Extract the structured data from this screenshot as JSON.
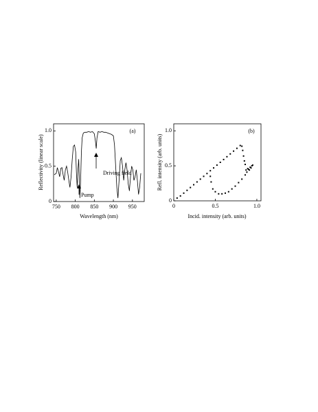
{
  "chart_data": [
    {
      "type": "line",
      "x_label": "Wavelength (nm)",
      "y_label": "Reflectivity (linear scale)",
      "annotations": [
        "(a)",
        "Driving field",
        "Pump"
      ],
      "color": "#000000",
      "x": [
        745,
        750,
        753,
        756,
        759,
        762,
        765,
        768,
        771,
        774,
        777,
        780,
        783,
        786,
        789,
        792,
        795,
        798,
        801,
        803,
        805,
        807,
        809,
        811,
        812,
        814,
        816,
        818,
        821,
        825,
        830,
        835,
        840,
        845,
        850,
        853,
        855,
        857,
        860,
        865,
        870,
        875,
        880,
        885,
        890,
        895,
        900,
        903,
        906,
        909,
        912,
        915,
        918,
        921,
        924,
        927,
        930,
        933,
        936,
        939,
        942,
        945,
        948,
        951,
        954,
        957,
        960,
        963,
        966,
        969,
        972
      ],
      "values": [
        0.38,
        0.4,
        0.48,
        0.42,
        0.35,
        0.47,
        0.48,
        0.38,
        0.3,
        0.45,
        0.5,
        0.42,
        0.3,
        0.2,
        0.35,
        0.6,
        0.78,
        0.8,
        0.7,
        0.4,
        0.2,
        0.45,
        0.6,
        0.25,
        0.05,
        0.3,
        0.7,
        0.9,
        0.97,
        0.98,
        0.98,
        0.99,
        0.98,
        0.99,
        0.96,
        0.85,
        0.75,
        0.9,
        0.99,
        0.98,
        0.99,
        0.98,
        0.98,
        0.97,
        0.96,
        0.95,
        0.93,
        0.8,
        0.5,
        0.2,
        0.05,
        0.3,
        0.58,
        0.62,
        0.5,
        0.3,
        0.45,
        0.55,
        0.45,
        0.25,
        0.15,
        0.35,
        0.5,
        0.45,
        0.3,
        0.35,
        0.45,
        0.3,
        0.1,
        0.2,
        0.4
      ],
      "xlim": [
        743,
        981
      ],
      "xticks": [
        750,
        800,
        850,
        900,
        950
      ],
      "ylim": [
        0,
        1.1
      ],
      "yticks": [
        0,
        0.5,
        {
          "value": 1,
          "label": "1.0"
        }
      ]
    },
    {
      "type": "scatter",
      "x_label": "Incid. intensity (arb. units)",
      "y_label": "Refl. intensity (arb. units)",
      "annotations": [
        "(b)"
      ],
      "color": "#000000",
      "x": [
        0.04,
        0.08,
        0.12,
        0.16,
        0.2,
        0.24,
        0.28,
        0.32,
        0.36,
        0.4,
        0.44,
        0.48,
        0.52,
        0.56,
        0.6,
        0.64,
        0.68,
        0.72,
        0.76,
        0.8,
        0.82,
        0.83,
        0.84,
        0.85,
        0.86,
        0.44,
        0.45,
        0.47,
        0.5,
        0.54,
        0.58,
        0.62,
        0.66,
        0.7,
        0.74,
        0.78,
        0.82,
        0.86,
        0.88,
        0.9,
        0.92,
        0.94,
        0.95,
        0.93,
        0.91,
        0.89,
        0.87
      ],
      "values": [
        0.04,
        0.07,
        0.11,
        0.15,
        0.19,
        0.23,
        0.27,
        0.31,
        0.35,
        0.39,
        0.43,
        0.47,
        0.51,
        0.55,
        0.59,
        0.63,
        0.67,
        0.71,
        0.75,
        0.79,
        0.78,
        0.72,
        0.64,
        0.57,
        0.52,
        0.35,
        0.27,
        0.17,
        0.13,
        0.1,
        0.1,
        0.11,
        0.13,
        0.17,
        0.21,
        0.26,
        0.31,
        0.37,
        0.41,
        0.45,
        0.48,
        0.5,
        0.51,
        0.47,
        0.44,
        0.46,
        0.44
      ],
      "xlim": [
        0,
        1.05
      ],
      "xticks": [
        0,
        0.5,
        {
          "value": 1,
          "label": "1.0"
        }
      ],
      "ylim": [
        0,
        1.1
      ],
      "yticks": [
        0,
        0.5,
        {
          "value": 1,
          "label": "1.0"
        }
      ]
    }
  ]
}
